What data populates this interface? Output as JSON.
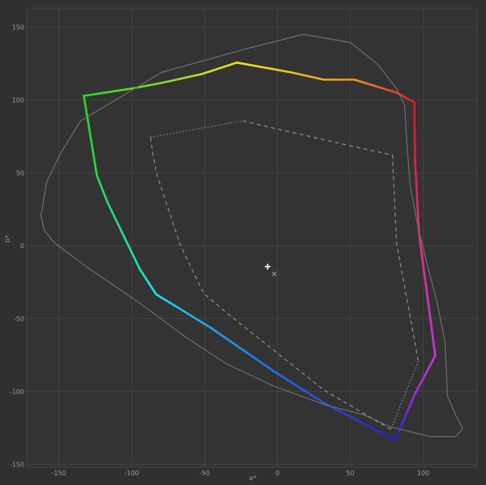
{
  "chart_data": {
    "type": "line",
    "title": "",
    "xlabel": "a*",
    "ylabel": "b*",
    "xlim": [
      -172,
      137
    ],
    "ylim": [
      -152,
      163
    ],
    "grid": true,
    "x_ticks": [
      -150,
      -100,
      -50,
      0,
      50,
      100
    ],
    "y_ticks": [
      -150,
      -100,
      -50,
      0,
      50,
      100,
      150
    ],
    "x_tick_labels": [
      "-150",
      "-100",
      "-50",
      "0",
      "50",
      "100"
    ],
    "y_tick_labels": [
      "-150",
      "-100",
      "-50",
      "0",
      "50",
      "100",
      "150"
    ],
    "colors": {
      "background": "#303030",
      "plot_background": "#333333",
      "grid": "#434343",
      "outline": "#6e6e6e",
      "reference": "#8c8c8c"
    },
    "series": [
      {
        "style": "gradient-hue-closed",
        "points": [
          {
            "a": -132.8,
            "b": 102.8,
            "color": "#22e022"
          },
          {
            "a": -100,
            "b": 107.8,
            "color": "#55e022"
          },
          {
            "a": -79.4,
            "b": 111.7,
            "color": "#80e020"
          },
          {
            "a": -51.7,
            "b": 117.8,
            "color": "#c0e020"
          },
          {
            "a": -27.8,
            "b": 125.6,
            "color": "#f0e020"
          },
          {
            "a": 9.4,
            "b": 118.9,
            "color": "#f0c020"
          },
          {
            "a": 31.7,
            "b": 113.9,
            "color": "#f0a820"
          },
          {
            "a": 52.8,
            "b": 113.9,
            "color": "#f09020"
          },
          {
            "a": 81.7,
            "b": 105,
            "color": "#e84020"
          },
          {
            "a": 93.9,
            "b": 98.3,
            "color": "#dd1a1a"
          },
          {
            "a": 94.4,
            "b": 59.4,
            "color": "#dd2040"
          },
          {
            "a": 97.2,
            "b": 7.8,
            "color": "#e0307a"
          },
          {
            "a": 102.2,
            "b": -29.4,
            "color": "#d830b0"
          },
          {
            "a": 108.3,
            "b": -75.6,
            "color": "#d030e0"
          },
          {
            "a": 94.4,
            "b": -101.7,
            "color": "#9a30e0"
          },
          {
            "a": 80.6,
            "b": -133.3,
            "color": "#2020c8"
          },
          {
            "a": 31.7,
            "b": -107.8,
            "color": "#2050e0"
          },
          {
            "a": -1.7,
            "b": -86.7,
            "color": "#2070e8"
          },
          {
            "a": -46.1,
            "b": -56.1,
            "color": "#20a0e8"
          },
          {
            "a": -83.3,
            "b": -33.3,
            "color": "#20e0e8"
          },
          {
            "a": -94.4,
            "b": -16.1,
            "color": "#20e0c0"
          },
          {
            "a": -103.3,
            "b": 2.2,
            "color": "#20e0a0"
          },
          {
            "a": -116.7,
            "b": 30,
            "color": "#20e070"
          },
          {
            "a": -123.9,
            "b": 48.3,
            "color": "#22e040"
          }
        ]
      },
      {
        "style": "solid-gray-closed",
        "points": [
          [
            105.6,
            -131.1
          ],
          [
            122.2,
            -131.1
          ],
          [
            127.2,
            -125.6
          ],
          [
            122.2,
            -116.1
          ],
          [
            116.7,
            -103.3
          ],
          [
            115,
            -66.1
          ],
          [
            109.4,
            -38.3
          ],
          [
            102.2,
            -10.6
          ],
          [
            96.7,
            11.7
          ],
          [
            91.1,
            41.1
          ],
          [
            88.9,
            68.9
          ],
          [
            87.2,
            96.7
          ],
          [
            81.7,
            107.8
          ],
          [
            68.9,
            124.4
          ],
          [
            50,
            139.4
          ],
          [
            17.8,
            145
          ],
          [
            -23.9,
            134.4
          ],
          [
            -79.4,
            118.9
          ],
          [
            -135,
            85.6
          ],
          [
            -148.9,
            63.3
          ],
          [
            -158.3,
            43.9
          ],
          [
            -162.2,
            20.6
          ],
          [
            -160,
            10.6
          ],
          [
            -153.3,
            2.2
          ],
          [
            -131.1,
            -14.4
          ],
          [
            -96.1,
            -38.3
          ],
          [
            -62.8,
            -62.8
          ],
          [
            -35,
            -81.1
          ],
          [
            -1.7,
            -96.7
          ],
          [
            31.7,
            -108.9
          ],
          [
            59.4,
            -116.1
          ],
          [
            77.8,
            -124.4
          ]
        ]
      },
      {
        "style": "dashed-gray",
        "points": [
          [
            -23.9,
            85.6
          ],
          [
            48.3,
            68.9
          ],
          [
            78.9,
            62.2
          ],
          [
            81.7,
            2.2
          ],
          [
            96.7,
            -79.4
          ]
        ]
      },
      {
        "style": "dotted-gray",
        "points": [
          [
            96.7,
            -79.4
          ],
          [
            77.8,
            -126.1
          ]
        ]
      },
      {
        "style": "dashed-gray",
        "points": [
          [
            77.8,
            -126.1
          ],
          [
            31.7,
            -98.9
          ],
          [
            -35,
            -46
          ],
          [
            -50.6,
            -32.8
          ],
          [
            -66.7,
            0.6
          ],
          [
            -83.3,
            50.6
          ],
          [
            -87.2,
            74.4
          ]
        ]
      },
      {
        "style": "dotted-gray",
        "points": [
          [
            -87.2,
            74.4
          ],
          [
            -23.9,
            85.6
          ]
        ]
      }
    ],
    "markers": [
      {
        "shape": "plus",
        "a": -6.7,
        "b": -14.4,
        "color": "#ffffff"
      },
      {
        "shape": "cross",
        "a": -2.2,
        "b": -19.4,
        "color": "#a0a0a0"
      }
    ]
  }
}
